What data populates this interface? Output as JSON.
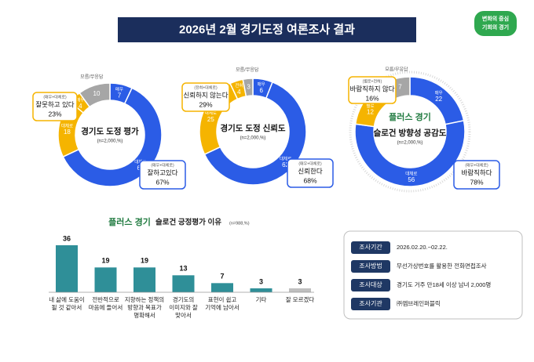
{
  "header": {
    "title": "2026년 2월 경기도정 여론조사 결과",
    "logo": [
      "변화의 중심",
      "기회의 경기"
    ],
    "slogan_logo": "플러스 경기"
  },
  "chart_data": [
    {
      "type": "donut",
      "title": "경기도 도정 평가",
      "subtitle": "(n=2,000,%)",
      "categories": [
        "매우",
        "대체로",
        "대체로",
        "매우",
        "모름/무응답"
      ],
      "values": [
        7,
        61,
        18,
        4,
        10
      ],
      "colors": [
        "#2b5ce6",
        "#2b5ce6",
        "#f5b400",
        "#f5b400",
        "#a6a6a6"
      ],
      "callouts": [
        {
          "note": "(매우+대체로)",
          "label": "잘하고있다",
          "value": 67,
          "value_label": "67%",
          "color": "#2b5ce6"
        },
        {
          "note": "(매우+대체로)",
          "label": "잘못하고 있다",
          "value": 23,
          "value_label": "23%",
          "color": "#f5b400"
        }
      ]
    },
    {
      "type": "donut",
      "title": "경기도 도정 신뢰도",
      "subtitle": "(n=2,000,%)",
      "categories": [
        "매우",
        "대체로",
        "대체로",
        "전혀",
        "모름/무응답"
      ],
      "values": [
        6,
        62,
        25,
        4,
        3
      ],
      "colors": [
        "#2b5ce6",
        "#2b5ce6",
        "#f5b400",
        "#f5b400",
        "#a6a6a6"
      ],
      "callouts": [
        {
          "note": "(매우+대체로)",
          "label": "신뢰한다",
          "value": 68,
          "value_label": "68%",
          "color": "#2b5ce6"
        },
        {
          "note": "(전혀+대체로)",
          "label": "신뢰하지 않는다",
          "value": 29,
          "value_label": "29%",
          "color": "#f5b400"
        }
      ]
    },
    {
      "type": "donut",
      "title": "슬로건 방향성 공감도",
      "subtitle": "(n=2,000,%)",
      "categories": [
        "매우",
        "대체로",
        "별로",
        "전혀",
        "모름/무응답"
      ],
      "values": [
        22,
        56,
        12,
        4,
        7
      ],
      "colors": [
        "#2b5ce6",
        "#2b5ce6",
        "#f5b400",
        "#f5b400",
        "#a6a6a6"
      ],
      "callouts": [
        {
          "note": "(매우+대체로)",
          "label": "바람직하다",
          "value": 78,
          "value_label": "78%",
          "color": "#2b5ce6"
        },
        {
          "note": "(별로+전혀)",
          "label": "바람직하지 않다",
          "value": 16,
          "value_label": "16%",
          "color": "#f5b400"
        }
      ]
    },
    {
      "type": "bar",
      "title": "슬로건 긍정평가 이유",
      "subtitle": "(n=988,%)",
      "categories": [
        [
          "내 삶에 도움이",
          "될 것 같아서"
        ],
        [
          "전반적으로",
          "마음에 들어서"
        ],
        [
          "지향하는 정책의",
          "방향과 목표가",
          "명확해서"
        ],
        [
          "경기도의",
          "이미지와 잘",
          "맞아서"
        ],
        [
          "표현이 쉽고",
          "기억에 남아서"
        ],
        [
          "기타"
        ],
        [
          "잘 모르겠다"
        ]
      ],
      "values": [
        36,
        19,
        19,
        13,
        7,
        3,
        3
      ],
      "colors": [
        "#2f8f98",
        "#2f8f98",
        "#2f8f98",
        "#2f8f98",
        "#2f8f98",
        "#2f8f98",
        "#bfbfbf"
      ]
    }
  ],
  "survey_info": {
    "rows": [
      [
        "조사기간",
        "2026.02.20.~02.22."
      ],
      [
        "조사방법",
        "무선가상번호를 활용한 전화면접조사"
      ],
      [
        "조사대상",
        "경기도 거주 만18세 이상 남녀 2,000명"
      ],
      [
        "조사기관",
        "㈜엠브레인퍼블릭"
      ]
    ]
  }
}
